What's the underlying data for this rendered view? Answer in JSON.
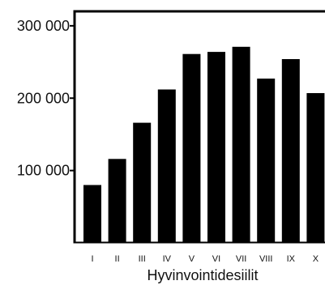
{
  "chart_data": {
    "type": "bar",
    "categories": [
      "I",
      "II",
      "III",
      "IV",
      "V",
      "VI",
      "VII",
      "VIII",
      "IX",
      "X"
    ],
    "values": [
      80000,
      116000,
      166000,
      212000,
      261000,
      264000,
      271000,
      227000,
      254000,
      207000
    ],
    "xlabel": "Hyvinvointidesiilit",
    "ylabel": "",
    "ylim": [
      0,
      320000
    ],
    "yticks": [
      100000,
      200000,
      300000
    ],
    "ytick_labels": [
      "100 000",
      "200 000",
      "300 000"
    ],
    "grid": false,
    "bar_color": "#000000",
    "axis_color": "#000000"
  }
}
